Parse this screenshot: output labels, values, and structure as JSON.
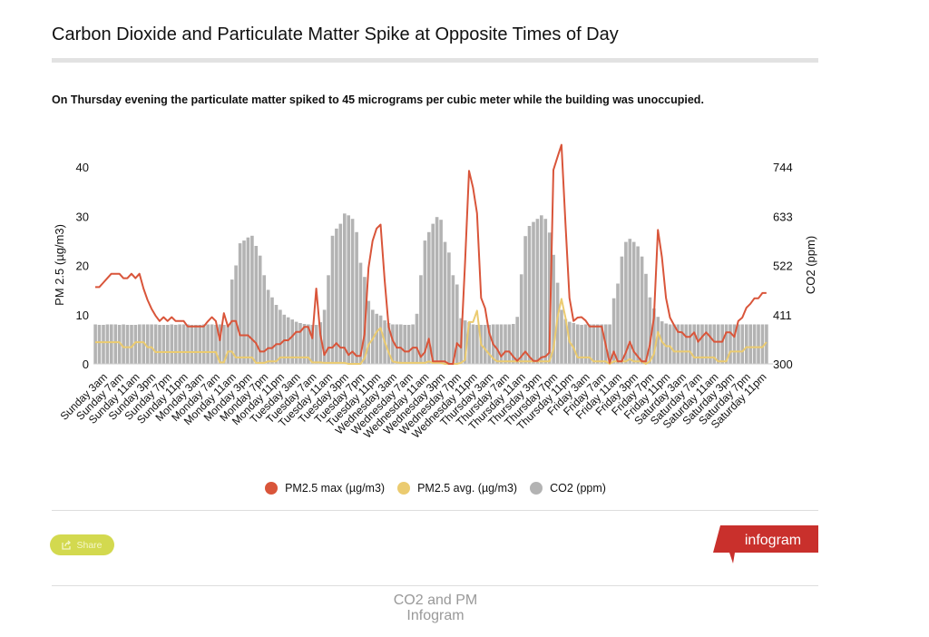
{
  "header": {
    "title": "Carbon Dioxide and Particulate Matter Spike at Opposite Times of Day",
    "subtitle": "On Thursday evening the particulate matter spiked to 45 micrograms per cubic meter while the building was unoccupied."
  },
  "colors": {
    "pm_max": "#d9553a",
    "pm_avg": "#ebcb70",
    "co2": "#b3b3b3",
    "share": "#d3d94f",
    "brand": "#c9302c"
  },
  "chart_data": {
    "type": "bar+line",
    "title": "Carbon Dioxide and Particulate Matter Spike at Opposite Times of Day",
    "ylabel_left": "PM 2.5 (µg/m3)",
    "ylabel_right": "CO2 (ppm)",
    "ylim_left": [
      0,
      40
    ],
    "ylim_right": [
      300,
      744
    ],
    "yticks_left": [
      "0",
      "10",
      "20",
      "30",
      "40"
    ],
    "yticks_right": [
      "300",
      "411",
      "522",
      "633",
      "744"
    ],
    "grid": false,
    "legend_position": "bottom",
    "x_tick_labels": [
      "Sunday 3am",
      "Sunday 7am",
      "Sunday 11am",
      "Sunday 3pm",
      "Sunday 7pm",
      "Sunday 11pm",
      "Monday 3am",
      "Monday 7am",
      "Monday 11am",
      "Monday 3pm",
      "Monday 7pm",
      "Monday 11pm",
      "Tuesday 3am",
      "Tuesday 7am",
      "Tuesday 11am",
      "Tuesday 3pm",
      "Tuesday 7pm",
      "Tuesday 11pm",
      "Wednesday 3am",
      "Wednesday 7am",
      "Wednesday 11am",
      "Wednesday 3pm",
      "Wednesday 7pm",
      "Wednesday 11pm",
      "Thursday 3am",
      "Thursday 7am",
      "Thursday 11am",
      "Thursday 3pm",
      "Thursday 7pm",
      "Thursday 11pm",
      "Friday 3am",
      "Friday 7am",
      "Friday 11am",
      "Friday 3pm",
      "Friday 7pm",
      "Friday 11pm",
      "Saturday 3am",
      "Saturday 7am",
      "Saturday 11am",
      "Saturday 3pm",
      "Saturday 7pm",
      "Saturday 11pm"
    ],
    "x_tick_every_hours": 4,
    "series": [
      {
        "name": "PM2.5 max (µg/m3)",
        "type": "line",
        "axis": "left",
        "values": [
          15.6,
          15.6,
          16.5,
          17.4,
          18.3,
          18.3,
          18.3,
          17.4,
          17.4,
          18.3,
          17.4,
          18.3,
          15.3,
          13.0,
          11.2,
          9.8,
          8.7,
          9.5,
          8.7,
          9.5,
          8.7,
          8.7,
          8.7,
          7.6,
          7.6,
          7.6,
          7.6,
          7.6,
          8.6,
          9.5,
          8.7,
          4.8,
          10.3,
          7.6,
          8.7,
          8.7,
          5.8,
          5.8,
          5.8,
          5.0,
          4.2,
          2.5,
          2.5,
          3.2,
          3.2,
          4.0,
          4.0,
          4.8,
          4.8,
          5.6,
          6.5,
          6.5,
          7.5,
          7.5,
          5.2,
          15.3,
          6.0,
          1.8,
          3.3,
          3.3,
          4.2,
          3.3,
          3.3,
          1.8,
          2.5,
          1.6,
          1.6,
          6.0,
          19.5,
          25.0,
          27.5,
          28.3,
          17.0,
          7.5,
          4.8,
          3.3,
          3.3,
          2.5,
          2.5,
          3.3,
          3.3,
          1.4,
          2.4,
          5.1,
          0.5,
          0.5,
          0.5,
          0.5,
          0,
          0,
          4.2,
          3.3,
          20.5,
          39.2,
          35.8,
          30.6,
          13.4,
          11.3,
          6.4,
          4.0,
          3.0,
          1.5,
          2.5,
          2.5,
          1.5,
          0.6,
          1.5,
          2.5,
          1.5,
          0.6,
          0.6,
          1.3,
          1.5,
          2.3,
          39.4,
          42.0,
          44.5,
          28.5,
          13.4,
          8.7,
          9.4,
          9.5,
          8.8,
          7.6,
          7.6,
          7.6,
          7.6,
          3.9,
          0.2,
          2.5,
          0.5,
          0.5,
          2.3,
          4.5,
          2.5,
          1.5,
          0.5,
          0.5,
          3.9,
          9.4,
          27.2,
          21.7,
          13.4,
          9.4,
          7.9,
          6.5,
          6.4,
          5.5,
          5.5,
          6.4,
          4.5,
          5.5,
          6.4,
          5.5,
          4.5,
          4.5,
          4.5,
          6.4,
          6.4,
          5.5,
          8.7,
          9.4,
          11.4,
          12.2,
          13.3,
          13.3,
          14.4,
          14.4
        ]
      },
      {
        "name": "PM2.5 avg. (µg/m3)",
        "type": "line",
        "axis": "left",
        "values": [
          4.4,
          4.4,
          4.4,
          4.4,
          4.4,
          4.4,
          4.4,
          3.4,
          3.4,
          3.4,
          4.4,
          4.4,
          4.4,
          3.4,
          3.4,
          2.4,
          2.4,
          2.4,
          2.4,
          2.4,
          2.4,
          2.4,
          2.4,
          2.4,
          2.4,
          2.4,
          2.4,
          2.4,
          2.4,
          2.4,
          2.4,
          0.3,
          0.3,
          2.5,
          2.5,
          1.3,
          1.3,
          1.3,
          1.3,
          1.3,
          0.2,
          0.2,
          0.2,
          0.5,
          0.5,
          0.5,
          1.3,
          1.3,
          1.3,
          1.3,
          1.3,
          1.3,
          1.3,
          1.3,
          0.3,
          0.3,
          0.3,
          0.2,
          0.2,
          0.2,
          0.2,
          0.2,
          0.2,
          0,
          0,
          0,
          0,
          1.1,
          3.9,
          5.0,
          6.5,
          7.3,
          4.5,
          2.3,
          0.5,
          0.3,
          0.2,
          0.2,
          0.2,
          0.2,
          0.2,
          0.2,
          0.2,
          0.5,
          0.2,
          0.2,
          0.2,
          0,
          0,
          0,
          0,
          0.2,
          0.8,
          8.5,
          8.5,
          10.8,
          3.9,
          3.0,
          2.0,
          1.1,
          0.5,
          0.5,
          0.5,
          0.5,
          0.5,
          0.5,
          0.5,
          0.5,
          0.5,
          0.5,
          0.5,
          0.5,
          0.5,
          0.5,
          3.0,
          9.4,
          13.2,
          9.4,
          4.5,
          3.3,
          1.3,
          1.3,
          1.3,
          1.3,
          0.5,
          0.5,
          0.5,
          0.5,
          0,
          0.5,
          0.5,
          0.5,
          0.5,
          1.0,
          0.5,
          0.5,
          0.5,
          0,
          0.5,
          2.0,
          6.5,
          4.5,
          3.6,
          3.6,
          2.5,
          2.5,
          2.5,
          2.5,
          2.5,
          1.3,
          1.3,
          1.3,
          1.3,
          1.3,
          1.3,
          0.5,
          0.5,
          0.5,
          2.5,
          2.5,
          2.5,
          2.5,
          3.4,
          3.4,
          3.4,
          3.4,
          3.4,
          4.4
        ]
      },
      {
        "name": "CO2 (ppm)",
        "type": "bar",
        "axis": "right",
        "values": [
          389,
          388,
          388,
          389,
          389,
          389,
          388,
          389,
          388,
          388,
          388,
          389,
          389,
          389,
          389,
          389,
          388,
          388,
          388,
          389,
          388,
          389,
          389,
          389,
          388,
          388,
          388,
          389,
          389,
          389,
          388,
          389,
          388,
          388,
          490,
          522,
          572,
          578,
          585,
          589,
          566,
          544,
          500,
          467,
          450,
          433,
          422,
          411,
          405,
          400,
          395,
          392,
          390,
          389,
          388,
          388,
          394,
          422,
          500,
          589,
          605,
          616,
          639,
          635,
          627,
          597,
          528,
          496,
          442,
          422,
          413,
          409,
          398,
          392,
          389,
          389,
          389,
          388,
          388,
          389,
          413,
          500,
          578,
          597,
          616,
          631,
          625,
          575,
          551,
          500,
          479,
          403,
          398,
          394,
          389,
          388,
          388,
          388,
          388,
          389,
          389,
          389,
          389,
          389,
          390,
          406,
          502,
          588,
          611,
          620,
          627,
          635,
          627,
          596,
          546,
          483,
          422,
          401,
          395,
          392,
          389,
          388,
          389,
          389,
          389,
          389,
          389,
          389,
          389,
          448,
          481,
          542,
          575,
          582,
          575,
          565,
          542,
          503,
          450,
          425,
          406,
          396,
          391,
          389,
          389,
          389,
          389,
          389,
          389,
          389,
          389,
          389,
          389,
          389,
          389,
          389,
          389,
          389,
          389,
          389,
          389,
          389,
          389,
          389,
          389,
          389,
          389,
          389
        ]
      }
    ]
  },
  "legend": [
    {
      "label": "PM2.5 max (µg/m3)"
    },
    {
      "label": "PM2.5 avg. (µg/m3)"
    },
    {
      "label": "CO2 (ppm)"
    }
  ],
  "share": {
    "label": "Share",
    "icon": "share-icon"
  },
  "logo": {
    "text": "infogram"
  },
  "footer": {
    "line1": "CO2 and PM",
    "line2": "Infogram"
  }
}
